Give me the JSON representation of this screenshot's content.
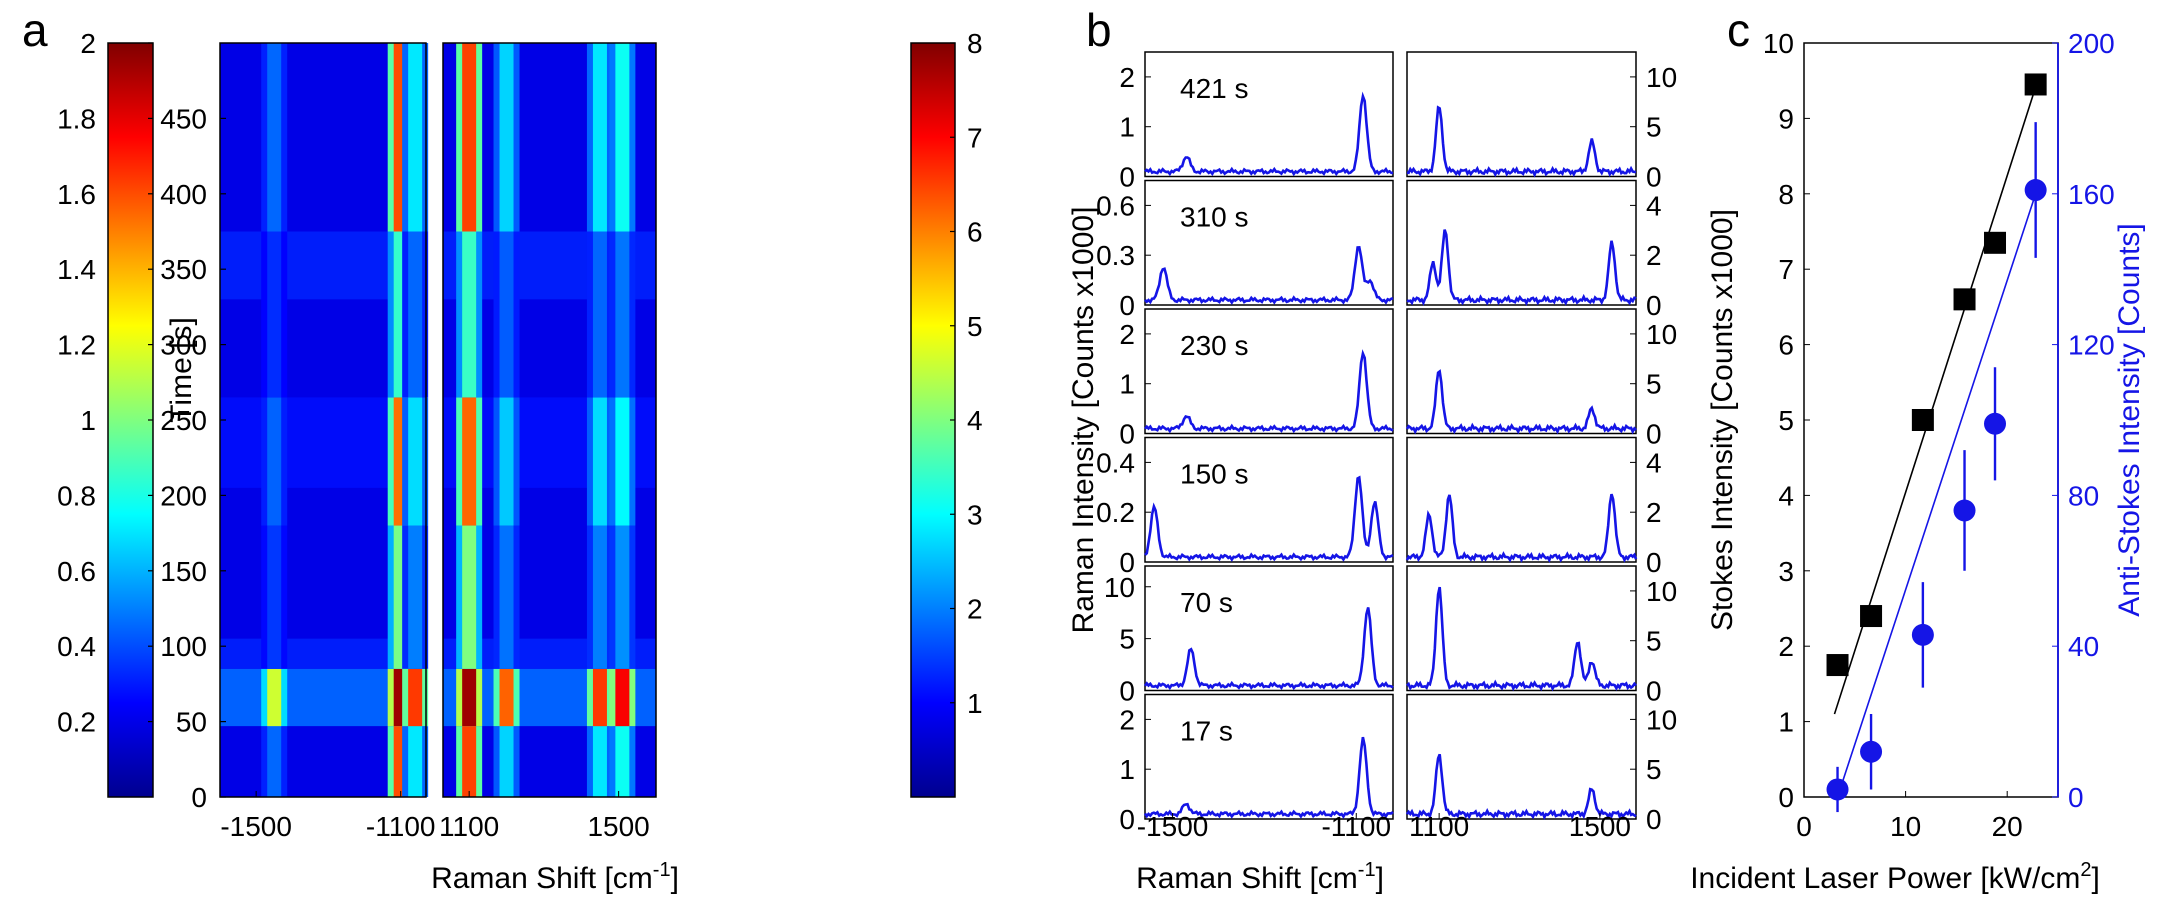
{
  "panels": {
    "a": {
      "label": "a",
      "ylabel": "Time [s]",
      "xlabel_prefix": "Raman Shift [cm",
      "xlabel_sup": "-1",
      "xlabel_suffix": "]",
      "y_ticks": [
        "0",
        "50",
        "100",
        "150",
        "200",
        "250",
        "300",
        "350",
        "400",
        "450"
      ],
      "x_ticks_left": [
        "-1500",
        "-1100"
      ],
      "x_ticks_right": [
        "1100",
        "1500"
      ],
      "colorbar_left_ticks": [
        "0.2",
        "0.4",
        "0.6",
        "0.8",
        "1",
        "1.2",
        "1.4",
        "1.6",
        "1.8",
        "2"
      ],
      "colorbar_right_ticks": [
        "1",
        "2",
        "3",
        "4",
        "5",
        "6",
        "7",
        "8"
      ]
    },
    "b": {
      "label": "b",
      "ylabel": "Raman Intensity [Counts x1000]",
      "xlabel_prefix": "Raman Shift [cm",
      "xlabel_sup": "-1",
      "xlabel_suffix": "]",
      "x_ticks_left": [
        "-1500",
        "-1100"
      ],
      "x_ticks_right": [
        "1100",
        "1500"
      ],
      "rows": [
        {
          "time_label": "421 s",
          "left_ticks": [
            "0",
            "1",
            "2"
          ],
          "right_ticks": [
            "0",
            "5",
            "10"
          ]
        },
        {
          "time_label": "310 s",
          "left_ticks": [
            "0",
            "0.3",
            "0.6"
          ],
          "right_ticks": [
            "0",
            "2",
            "4"
          ]
        },
        {
          "time_label": "230 s",
          "left_ticks": [
            "0",
            "1",
            "2"
          ],
          "right_ticks": [
            "0",
            "5",
            "10"
          ]
        },
        {
          "time_label": "150 s",
          "left_ticks": [
            "0",
            "0.2",
            "0.4"
          ],
          "right_ticks": [
            "0",
            "2",
            "4"
          ]
        },
        {
          "time_label": "70 s",
          "left_ticks": [
            "0",
            "5",
            "10"
          ],
          "right_ticks": [
            "0",
            "5",
            "10"
          ]
        },
        {
          "time_label": "17 s",
          "left_ticks": [
            "0",
            "1",
            "2"
          ],
          "right_ticks": [
            "0",
            "5",
            "10"
          ]
        }
      ]
    },
    "c": {
      "label": "c",
      "ylabel_left": "Stokes Intensity [Counts x1000]",
      "ylabel_right": "Anti-Stokes Intensity [Counts]",
      "xlabel_prefix": "Incident Laser Power [kW/cm",
      "xlabel_sup": "2",
      "xlabel_suffix": "]",
      "x_ticks": [
        "0",
        "10",
        "20"
      ],
      "y_left_ticks": [
        "0",
        "1",
        "2",
        "3",
        "4",
        "5",
        "6",
        "7",
        "8",
        "9",
        "10"
      ],
      "y_right_ticks": [
        "0",
        "40",
        "80",
        "120",
        "160",
        "200"
      ]
    }
  },
  "colors": {
    "series_blue": "#1515e6",
    "stokes_black": "#000000"
  },
  "chart_data": [
    {
      "type": "heatmap",
      "panel": "a",
      "title": "",
      "xlabel": "Raman Shift [cm-1]",
      "ylabel": "Time [s]",
      "ylim": [
        0,
        500
      ],
      "sub_axes": [
        {
          "name": "anti-stokes",
          "xlim": [
            -1600,
            -1030
          ],
          "clim": [
            0,
            2
          ],
          "colormap": "jet"
        },
        {
          "name": "stokes",
          "xlim": [
            1030,
            1600
          ],
          "clim": [
            0,
            8
          ],
          "colormap": "jet"
        }
      ],
      "stripes_anti_stokes": [
        {
          "x": -1450,
          "intensity": 0.25
        },
        {
          "x": -1100,
          "intensity": 1.6
        },
        {
          "x": -1060,
          "intensity": 0.55
        }
      ],
      "stripes_stokes": [
        {
          "x": 1100,
          "intensity": 6.5
        },
        {
          "x": 1200,
          "intensity": 2.0
        },
        {
          "x": 1450,
          "intensity": 2.2
        },
        {
          "x": 1510,
          "intensity": 2.5
        }
      ],
      "event_band_time": [
        47,
        85
      ]
    },
    {
      "type": "line",
      "panel": "b",
      "xlabel": "Raman Shift [cm-1]",
      "ylabel": "Raman Intensity [Counts x1000]",
      "xlim_left": [
        -1560,
        -1020
      ],
      "xlim_right": [
        1020,
        1590
      ],
      "rows": [
        {
          "time": "421 s",
          "ylim_left": [
            0,
            2.5
          ],
          "ylim_right": [
            0,
            12.5
          ],
          "peaks_left": [
            {
              "x": -1470,
              "h": 0.3
            },
            {
              "x": -1085,
              "h": 1.55
            }
          ],
          "peaks_right": [
            {
              "x": 1100,
              "h": 6.5
            },
            {
              "x": 1480,
              "h": 3.0
            }
          ]
        },
        {
          "time": "310 s",
          "ylim_left": [
            0,
            0.75
          ],
          "ylim_right": [
            0,
            5
          ],
          "peaks_left": [
            {
              "x": -1520,
              "h": 0.2
            },
            {
              "x": -1095,
              "h": 0.33
            },
            {
              "x": -1070,
              "h": 0.12
            }
          ],
          "peaks_right": [
            {
              "x": 1085,
              "h": 1.5
            },
            {
              "x": 1115,
              "h": 2.8
            },
            {
              "x": 1530,
              "h": 2.3
            }
          ]
        },
        {
          "time": "230 s",
          "ylim_left": [
            0,
            2.5
          ],
          "ylim_right": [
            0,
            12.5
          ],
          "peaks_left": [
            {
              "x": -1470,
              "h": 0.25
            },
            {
              "x": -1085,
              "h": 1.55
            }
          ],
          "peaks_right": [
            {
              "x": 1100,
              "h": 6.0
            },
            {
              "x": 1480,
              "h": 2.0
            }
          ]
        },
        {
          "time": "150 s",
          "ylim_left": [
            0,
            0.5
          ],
          "ylim_right": [
            0,
            5
          ],
          "peaks_left": [
            {
              "x": -1540,
              "h": 0.2
            },
            {
              "x": -1095,
              "h": 0.33
            },
            {
              "x": -1060,
              "h": 0.22
            }
          ],
          "peaks_right": [
            {
              "x": 1075,
              "h": 1.7
            },
            {
              "x": 1125,
              "h": 2.5
            },
            {
              "x": 1530,
              "h": 2.6
            }
          ]
        },
        {
          "time": "70 s",
          "ylim_left": [
            0,
            12
          ],
          "ylim_right": [
            0,
            12.5
          ],
          "peaks_left": [
            {
              "x": -1460,
              "h": 3.5
            },
            {
              "x": -1075,
              "h": 7.5
            }
          ],
          "peaks_right": [
            {
              "x": 1100,
              "h": 10.0
            },
            {
              "x": 1445,
              "h": 4.5
            },
            {
              "x": 1480,
              "h": 2.5
            }
          ]
        },
        {
          "time": "17 s",
          "ylim_left": [
            0,
            2.5
          ],
          "ylim_right": [
            0,
            12.5
          ],
          "peaks_left": [
            {
              "x": -1470,
              "h": 0.2
            },
            {
              "x": -1085,
              "h": 1.5
            }
          ],
          "peaks_right": [
            {
              "x": 1100,
              "h": 6.0
            },
            {
              "x": 1480,
              "h": 2.5
            }
          ]
        }
      ]
    },
    {
      "type": "scatter",
      "panel": "c",
      "xlabel": "Incident Laser Power [kW/cm2]",
      "ylabel": "Stokes Intensity [Counts x1000]",
      "ylabel_right": "Anti-Stokes Intensity [Counts]",
      "xlim": [
        0,
        25
      ],
      "ylim": [
        0,
        10
      ],
      "ylim_right": [
        0,
        200
      ],
      "series": [
        {
          "name": "Stokes",
          "axis": "left",
          "marker": "square",
          "color": "#000000",
          "x": [
            3.3,
            6.6,
            11.7,
            15.8,
            18.8,
            22.8
          ],
          "y": [
            1.75,
            2.4,
            5.0,
            6.6,
            7.35,
            9.45
          ],
          "fit": {
            "x": [
              3.0,
              23.0
            ],
            "y": [
              1.1,
              9.5
            ]
          }
        },
        {
          "name": "Anti-Stokes",
          "axis": "right",
          "marker": "circle",
          "color": "#1515e6",
          "x": [
            3.3,
            6.6,
            11.7,
            15.8,
            18.8,
            22.8
          ],
          "y": [
            2,
            12,
            43,
            76,
            99,
            161
          ],
          "err": [
            6,
            10,
            14,
            16,
            15,
            18
          ],
          "fit": {
            "x": [
              3.3,
              22.8
            ],
            "y": [
              0,
              160
            ]
          }
        }
      ]
    }
  ]
}
